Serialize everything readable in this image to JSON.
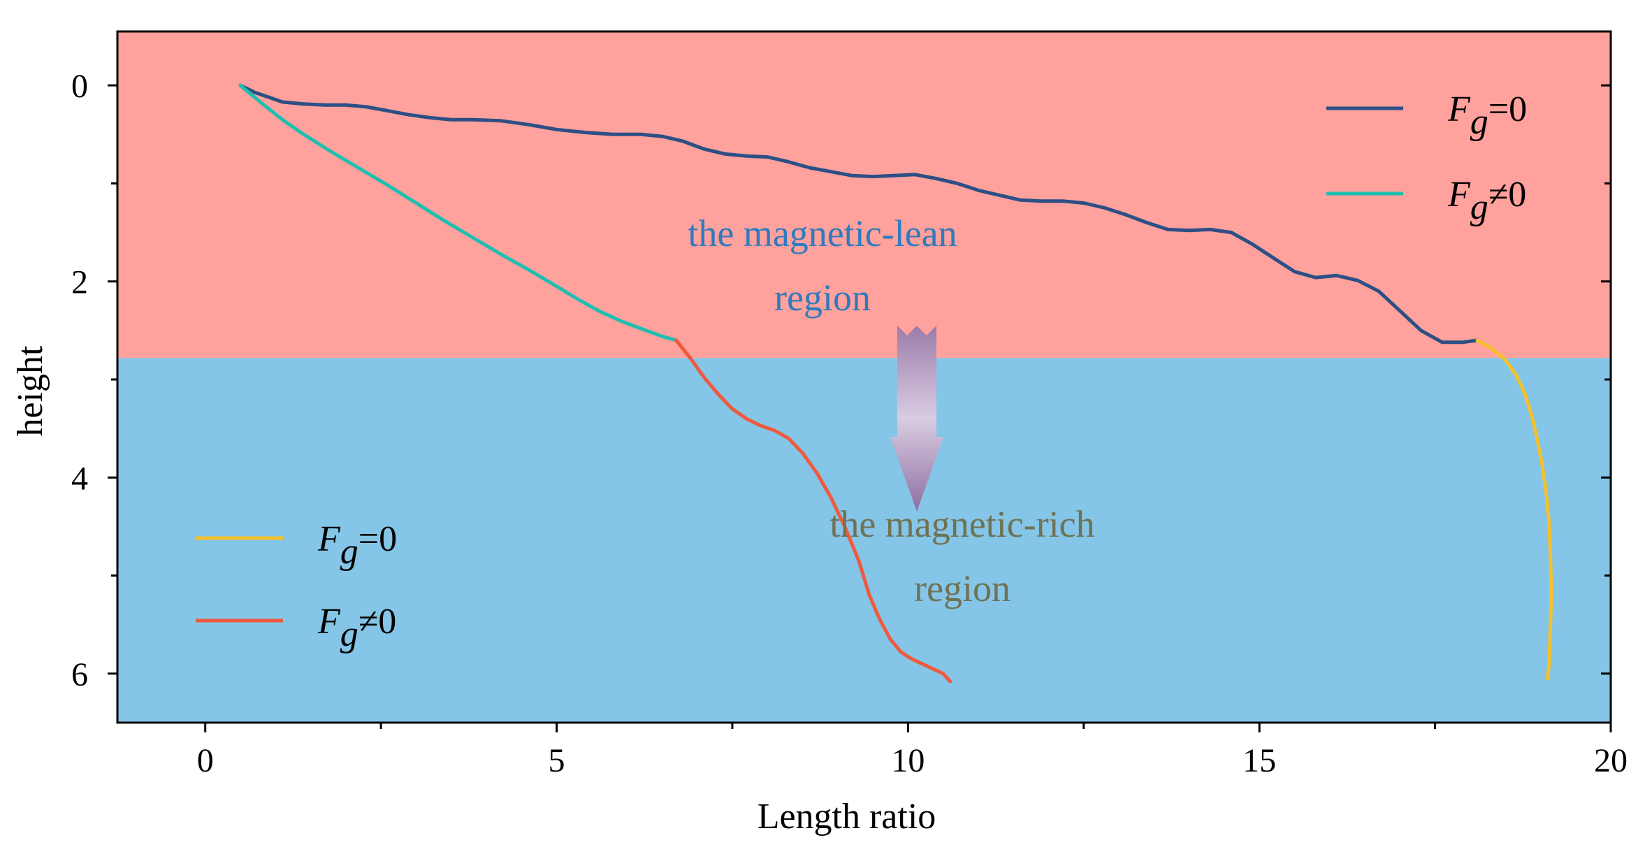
{
  "chart_data": {
    "type": "line",
    "xlabel": "Length ratio",
    "ylabel": "height",
    "xlim": [
      -1.25,
      20
    ],
    "ylim": [
      6.5,
      -0.55
    ],
    "y_inverted": true,
    "x_ticks": [
      0,
      5,
      10,
      15,
      20
    ],
    "y_ticks": [
      0,
      2,
      4,
      6
    ],
    "regions": [
      {
        "label": "the magnetic-lean region",
        "line1": "the magnetic-lean",
        "line2": "region",
        "y_from": -0.55,
        "y_to": 2.78,
        "color": "#FFA19C",
        "text_color": "#2E7BBF"
      },
      {
        "label": "the magnetic-rich region",
        "line1": "the magnetic-rich",
        "line2": "region",
        "y_from": 2.78,
        "y_to": 6.5,
        "color": "#85C5E7",
        "text_color": "#6F7253"
      }
    ],
    "series": [
      {
        "name": "Fg=0",
        "region": "lean",
        "color": "#2C4F86",
        "x": [
          0.5,
          0.7,
          0.9,
          1.1,
          1.4,
          1.7,
          2.0,
          2.3,
          2.6,
          2.9,
          3.2,
          3.5,
          3.8,
          4.2,
          4.6,
          5.0,
          5.4,
          5.8,
          6.2,
          6.5,
          6.8,
          7.1,
          7.4,
          7.7,
          8.0,
          8.3,
          8.6,
          8.9,
          9.2,
          9.5,
          9.8,
          10.1,
          10.4,
          10.7,
          11.0,
          11.3,
          11.6,
          11.9,
          12.2,
          12.5,
          12.8,
          13.1,
          13.4,
          13.7,
          14.0,
          14.3,
          14.6,
          14.9,
          15.2,
          15.5,
          15.8,
          16.1,
          16.4,
          16.7,
          17.0,
          17.3,
          17.6,
          17.9,
          18.1
        ],
        "y": [
          0.0,
          0.07,
          0.12,
          0.17,
          0.19,
          0.2,
          0.2,
          0.22,
          0.26,
          0.3,
          0.33,
          0.35,
          0.35,
          0.36,
          0.4,
          0.45,
          0.48,
          0.5,
          0.5,
          0.52,
          0.57,
          0.65,
          0.7,
          0.72,
          0.73,
          0.78,
          0.84,
          0.88,
          0.92,
          0.93,
          0.92,
          0.91,
          0.95,
          1.0,
          1.07,
          1.12,
          1.17,
          1.18,
          1.18,
          1.2,
          1.25,
          1.32,
          1.4,
          1.47,
          1.48,
          1.47,
          1.5,
          1.62,
          1.76,
          1.9,
          1.96,
          1.94,
          1.99,
          2.1,
          2.3,
          2.5,
          2.62,
          2.62,
          2.6
        ]
      },
      {
        "name": "Fg=0",
        "region": "rich",
        "color": "#F5C12C",
        "x": [
          18.1,
          18.3,
          18.5,
          18.65,
          18.78,
          18.88,
          18.95,
          19.02,
          19.08,
          19.12,
          19.14,
          19.15,
          19.15,
          19.14,
          19.13,
          19.12,
          19.1
        ],
        "y": [
          2.6,
          2.68,
          2.8,
          2.95,
          3.15,
          3.38,
          3.6,
          3.85,
          4.15,
          4.45,
          4.75,
          5.05,
          5.3,
          5.55,
          5.75,
          5.92,
          6.05
        ]
      },
      {
        "name": "Fg≠0",
        "region": "lean",
        "color": "#1FBFB0",
        "x": [
          0.5,
          0.8,
          1.1,
          1.4,
          1.8,
          2.2,
          2.6,
          3.0,
          3.4,
          3.8,
          4.2,
          4.6,
          5.0,
          5.3,
          5.6,
          5.9,
          6.2,
          6.5,
          6.7
        ],
        "y": [
          0.0,
          0.18,
          0.35,
          0.5,
          0.68,
          0.85,
          1.02,
          1.2,
          1.38,
          1.55,
          1.72,
          1.88,
          2.05,
          2.18,
          2.3,
          2.4,
          2.48,
          2.56,
          2.6
        ]
      },
      {
        "name": "Fg≠0",
        "region": "rich",
        "color": "#EF5A3D",
        "x": [
          6.7,
          6.9,
          7.1,
          7.3,
          7.5,
          7.7,
          7.9,
          8.1,
          8.3,
          8.5,
          8.7,
          8.9,
          9.1,
          9.3,
          9.45,
          9.6,
          9.75,
          9.9,
          10.05,
          10.2,
          10.35,
          10.5,
          10.6
        ],
        "y": [
          2.6,
          2.78,
          2.98,
          3.15,
          3.3,
          3.4,
          3.47,
          3.52,
          3.6,
          3.75,
          3.95,
          4.2,
          4.5,
          4.85,
          5.2,
          5.45,
          5.65,
          5.78,
          5.85,
          5.9,
          5.95,
          6.0,
          6.08
        ]
      }
    ],
    "legends": [
      {
        "placement": "top-right",
        "entries": [
          {
            "name": "Fg=0",
            "color": "#2C4F86"
          },
          {
            "name": "Fg≠0",
            "color": "#1FBFB0"
          }
        ]
      },
      {
        "placement": "bottom-left",
        "entries": [
          {
            "name": "Fg=0",
            "color": "#F5C12C"
          },
          {
            "name": "Fg≠0",
            "color": "#EF5A3D"
          }
        ]
      }
    ],
    "annotation_arrow": {
      "direction": "down",
      "from_region": "lean",
      "to_region": "rich"
    }
  }
}
